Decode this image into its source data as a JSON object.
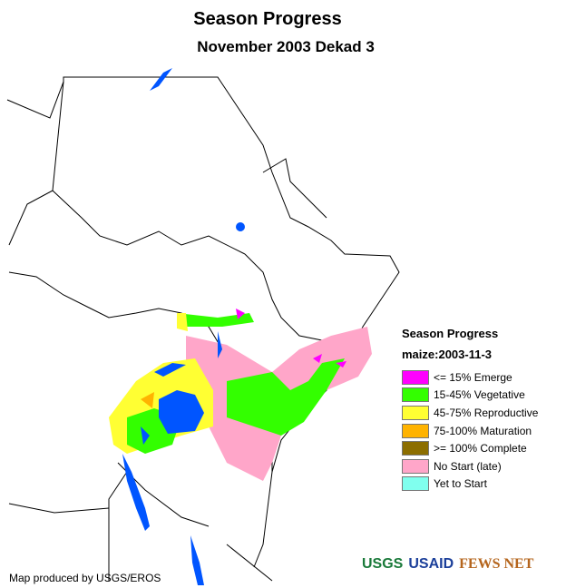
{
  "title": "Season Progress",
  "subtitle": "November 2003 Dekad 3",
  "legend": {
    "title": "Season Progress",
    "subtitle": "maize:2003-11-3",
    "items": [
      {
        "label": "<= 15% Emerge",
        "color": "#ff00ff"
      },
      {
        "label": "15-45% Vegetative",
        "color": "#33ff00"
      },
      {
        "label": "45-75% Reproductive",
        "color": "#ffff33"
      },
      {
        "label": "75-100% Maturation",
        "color": "#ffb300"
      },
      {
        "label": ">= 100% Complete",
        "color": "#8c6e00"
      },
      {
        "label": "No Start (late)",
        "color": "#ffa6c9"
      },
      {
        "label": "Yet to Start",
        "color": "#80ffee"
      }
    ]
  },
  "credit": "Map produced by USGS/EROS",
  "logos": [
    "USGS",
    "USAID",
    "FEWS NET"
  ],
  "colors": {
    "water": "#0055ff",
    "border": "#000000"
  }
}
